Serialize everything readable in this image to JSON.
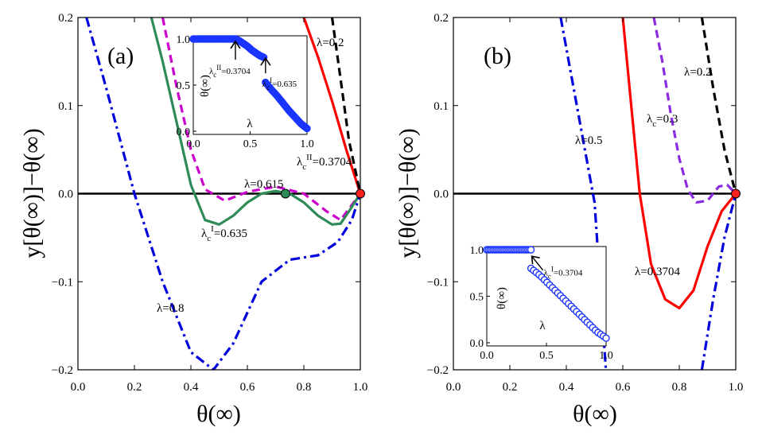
{
  "chart_data": [
    {
      "type": "line",
      "panel": "(a)",
      "xlabel": "θ(∞)",
      "ylabel": "y[θ(∞)]−θ(∞)",
      "xlim": [
        0.0,
        1.0
      ],
      "ylim": [
        -0.2,
        0.2
      ],
      "xticks": [
        "0.0",
        "0.2",
        "0.4",
        "0.6",
        "0.8",
        "1.0"
      ],
      "yticks": [
        "0.2",
        "0.1",
        "0.0",
        "−0.1",
        "−0.2"
      ],
      "series": [
        {
          "name": "λ=0.2",
          "color": "#ff0000",
          "style": "solid",
          "x": [
            0.8,
            0.85,
            0.9,
            0.95,
            1.0
          ],
          "y": [
            0.2,
            0.155,
            0.105,
            0.05,
            0.0
          ]
        },
        {
          "name": "λc^II=0.3704",
          "color": "#000000",
          "style": "dash",
          "x": [
            0.9,
            0.93,
            0.96,
            1.0
          ],
          "y": [
            0.2,
            0.13,
            0.06,
            0.0
          ]
        },
        {
          "name": "dashed (magenta)",
          "color": "#cc00cc",
          "style": "dash",
          "x": [
            0.3,
            0.35,
            0.4,
            0.45,
            0.52,
            0.6,
            0.7,
            0.8,
            0.88,
            0.93,
            1.0
          ],
          "y": [
            0.2,
            0.12,
            0.05,
            0.005,
            -0.008,
            0.002,
            0.008,
            0.0,
            -0.02,
            -0.03,
            0.0
          ]
        },
        {
          "name": "λc^I=0.635",
          "color": "#2e8b57",
          "style": "solid",
          "x": [
            0.26,
            0.3,
            0.35,
            0.4,
            0.45,
            0.5,
            0.55,
            0.6,
            0.65,
            0.7,
            0.75,
            0.8,
            0.85,
            0.9,
            0.93,
            0.96,
            1.0
          ],
          "y": [
            0.2,
            0.15,
            0.08,
            0.01,
            -0.03,
            -0.035,
            -0.025,
            -0.01,
            0.0,
            0.003,
            0.0,
            -0.01,
            -0.025,
            -0.035,
            -0.034,
            -0.02,
            0.0
          ]
        },
        {
          "name": "λ=0.8",
          "color": "#0000dd",
          "style": "dashdot",
          "x": [
            0.03,
            0.1,
            0.2,
            0.3,
            0.4,
            0.48,
            0.55,
            0.65,
            0.75,
            0.85,
            0.92,
            0.97,
            1.0
          ],
          "y": [
            0.2,
            0.12,
            0.0,
            -0.1,
            -0.18,
            -0.2,
            -0.17,
            -0.1,
            -0.075,
            -0.07,
            -0.055,
            -0.03,
            0.0
          ]
        }
      ],
      "hline": 0.0,
      "markers": [
        {
          "x": 1.0,
          "y": 0.0,
          "color": "#ff2020",
          "label": ""
        },
        {
          "x": 0.735,
          "y": 0.0,
          "color": "#2e8b57",
          "label": "λ=0.615"
        }
      ],
      "annotations": [
        {
          "text": "λ=0.2",
          "at": [
            0.835,
            0.17
          ]
        },
        {
          "text": "λc^II=0.3704",
          "at": [
            0.86,
            0.035
          ]
        },
        {
          "text": "λ=0.615",
          "at": [
            0.64,
            0.007
          ]
        },
        {
          "text": "λc^I=0.635",
          "at": [
            0.47,
            -0.046
          ]
        },
        {
          "text": "λ=0.8",
          "at": [
            0.29,
            -0.14
          ]
        }
      ],
      "inset": {
        "xlabel": "λ",
        "ylabel": "θ(∞)",
        "xlim": [
          0.0,
          1.0
        ],
        "ylim": [
          0.0,
          1.0
        ],
        "xticks": [
          "0.0",
          "0.5",
          "1.0"
        ],
        "yticks": [
          "1.0",
          "0.5",
          "0.0"
        ],
        "segments": [
          {
            "x_start": 0.0,
            "x_end": 0.37,
            "value": 1.0
          },
          {
            "x_start": 0.37,
            "x_end": 0.62,
            "shape": "decreasing",
            "values": [
              1.0,
              0.98,
              0.95,
              0.92,
              0.88,
              0.85,
              0.82,
              0.8
            ]
          },
          {
            "x_start": 0.635,
            "x_end": 1.0,
            "shape": "decreasing",
            "values": [
              0.53,
              0.45,
              0.38,
              0.3,
              0.22,
              0.15,
              0.08,
              0.03
            ]
          }
        ],
        "arrows": [
          {
            "text": "λc^II=0.3704",
            "x": 0.3704
          },
          {
            "text": "λc^I=0.635",
            "x": 0.635
          }
        ]
      }
    },
    {
      "type": "line",
      "panel": "(b)",
      "xlabel": "θ(∞)",
      "ylabel": "y[θ(∞)]−θ(∞)",
      "xlim": [
        0.0,
        1.0
      ],
      "ylim": [
        -0.2,
        0.2
      ],
      "xticks": [
        "0.0",
        "0.2",
        "0.4",
        "0.6",
        "0.8",
        "1.0"
      ],
      "yticks": [
        "0.2",
        "0.1",
        "0.0",
        "−0.1",
        "−0.2"
      ],
      "series": [
        {
          "name": "λ=0.2",
          "color": "#000000",
          "style": "dash",
          "x": [
            0.88,
            0.92,
            0.96,
            1.0
          ],
          "y": [
            0.2,
            0.12,
            0.05,
            0.0
          ]
        },
        {
          "name": "λc=0.3",
          "color": "#8a2be2",
          "style": "dash",
          "x": [
            0.71,
            0.74,
            0.77,
            0.8,
            0.83,
            0.86,
            0.9,
            0.94,
            0.97,
            1.0
          ],
          "y": [
            0.2,
            0.15,
            0.09,
            0.04,
            0.005,
            -0.01,
            -0.008,
            0.008,
            0.01,
            0.0
          ]
        },
        {
          "name": "λ=0.3704",
          "color": "#ff0000",
          "style": "solid",
          "x": [
            0.6,
            0.63,
            0.66,
            0.7,
            0.75,
            0.8,
            0.85,
            0.9,
            0.95,
            1.0
          ],
          "y": [
            0.2,
            0.1,
            0.0,
            -0.08,
            -0.12,
            -0.13,
            -0.11,
            -0.06,
            -0.02,
            0.0
          ]
        },
        {
          "name": "λ=0.5",
          "color": "#0000dd",
          "style": "dashdot",
          "x": [
            0.38,
            0.42,
            0.46,
            0.5,
            0.54
          ],
          "y": [
            0.2,
            0.13,
            0.06,
            -0.01,
            -0.2
          ]
        },
        {
          "name": "λ=0.5 (right branch)",
          "color": "#0000dd",
          "style": "dashdot",
          "x": [
            0.88,
            0.92,
            0.96,
            1.0
          ],
          "y": [
            -0.2,
            -0.12,
            -0.05,
            0.0
          ]
        }
      ],
      "hline": 0.0,
      "markers": [
        {
          "x": 1.0,
          "y": 0.0,
          "color": "#ff2020",
          "label": ""
        }
      ],
      "annotations": [
        {
          "text": "λ=0.2",
          "at": [
            0.86,
            0.145
          ]
        },
        {
          "text": "λc=0.3",
          "at": [
            0.74,
            0.085
          ]
        },
        {
          "text": "λ=0.5",
          "at": [
            0.39,
            0.063
          ]
        },
        {
          "text": "λ=0.3704",
          "at": [
            0.72,
            -0.087
          ]
        }
      ],
      "inset": {
        "xlabel": "λ",
        "ylabel": "θ(∞)",
        "xlim": [
          0.0,
          1.0
        ],
        "ylim": [
          0.0,
          1.0
        ],
        "xticks": [
          "0.0",
          "0.5",
          "1.0"
        ],
        "yticks": [
          "1.0",
          "0.5",
          "0.0"
        ],
        "segments": [
          {
            "x_start": 0.0,
            "x_end": 0.3704,
            "value": 1.0
          },
          {
            "x_start": 0.3704,
            "x_end": 1.0,
            "shape": "decreasing",
            "values": [
              0.8,
              0.72,
              0.62,
              0.52,
              0.42,
              0.32,
              0.22,
              0.12,
              0.05
            ]
          }
        ],
        "arrows": [
          {
            "text": "λc^I=0.3704",
            "x": 0.3704
          }
        ]
      }
    }
  ],
  "labels": {
    "a_l02": "λ=0.2",
    "a_lc2": "λ",
    "a_lc2_sub": "c",
    "a_lc2_sup": "II",
    "a_lc2_val": "=0.3704",
    "a_l0615": "λ=0.615",
    "a_lc1": "λ",
    "a_lc1_sub": "c",
    "a_lc1_sup": "I",
    "a_lc1_val": "=0.635",
    "a_l08": "λ=0.8",
    "b_l02": "λ=0.2",
    "b_lc": "λ",
    "b_lc_sub": "c",
    "b_lc_val": "=0.3",
    "b_l05": "λ=0.5",
    "b_l03704": "λ=0.3704"
  }
}
